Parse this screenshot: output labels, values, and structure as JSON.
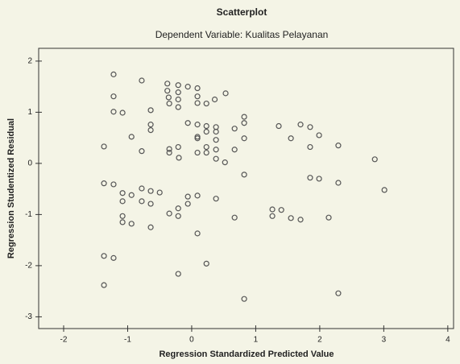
{
  "chart_data": {
    "type": "scatter",
    "title": "Scatterplot",
    "subtitle": "Dependent Variable: Kualitas Pelayanan",
    "x_label": "Regression Standardized Predicted Value",
    "y_label": "Regression Studentized Residual",
    "x": [
      -1.22,
      -1.22,
      -1.22,
      -1.08,
      -0.78,
      -0.64,
      -0.64,
      -0.64,
      -0.94,
      -0.78,
      -1.37,
      -0.38,
      -0.38,
      -0.36,
      -0.35,
      -0.21,
      -0.21,
      -0.21,
      -0.21,
      -0.06,
      0.09,
      0.09,
      0.09,
      0.23,
      0.36,
      0.53,
      -0.06,
      0.09,
      0.23,
      0.38,
      0.38,
      0.23,
      0.09,
      0.09,
      0.38,
      -0.21,
      -0.35,
      -0.35,
      -0.2,
      0.09,
      0.23,
      0.23,
      0.38,
      0.38,
      0.52,
      0.67,
      0.67,
      0.82,
      0.82,
      0.82,
      0.82,
      1.36,
      1.55,
      1.7,
      1.85,
      1.99,
      1.85,
      2.29,
      2.86,
      1.85,
      1.99,
      2.29,
      3.01,
      -1.37,
      -1.22,
      -1.08,
      -0.94,
      -1.08,
      -0.78,
      -0.64,
      -0.5,
      -0.78,
      -0.64,
      -1.08,
      -1.08,
      -0.94,
      -0.64,
      -0.35,
      -0.21,
      -0.21,
      -0.06,
      -0.06,
      0.09,
      0.38,
      0.09,
      0.23,
      -0.21,
      0.67,
      1.26,
      1.26,
      1.4,
      1.55,
      1.7,
      2.14,
      -1.37,
      -1.22,
      -1.37,
      0.82,
      2.29
    ],
    "values": [
      1.74,
      1.31,
      1.01,
      0.99,
      1.62,
      1.04,
      0.76,
      0.65,
      0.52,
      0.24,
      0.33,
      1.56,
      1.42,
      1.29,
      1.17,
      1.53,
      1.39,
      1.25,
      1.1,
      1.5,
      1.47,
      1.31,
      1.18,
      1.17,
      1.25,
      1.37,
      0.79,
      0.76,
      0.73,
      0.71,
      0.62,
      0.62,
      0.52,
      0.49,
      0.46,
      0.32,
      0.28,
      0.21,
      0.11,
      0.21,
      0.32,
      0.21,
      0.27,
      0.09,
      0.02,
      0.27,
      0.68,
      0.91,
      0.79,
      0.49,
      -0.22,
      0.73,
      0.49,
      0.76,
      0.71,
      0.55,
      0.32,
      0.35,
      0.08,
      -0.28,
      -0.3,
      -0.38,
      -0.52,
      -0.39,
      -0.41,
      -0.58,
      -0.62,
      -0.74,
      -0.49,
      -0.54,
      -0.57,
      -0.74,
      -0.79,
      -1.03,
      -1.15,
      -1.18,
      -1.25,
      -0.98,
      -1.03,
      -0.88,
      -0.79,
      -0.65,
      -0.63,
      -0.69,
      -1.37,
      -1.96,
      -2.16,
      -1.06,
      -0.9,
      -1.03,
      -0.91,
      -1.07,
      -1.1,
      -1.06,
      -1.81,
      -1.85,
      -2.38,
      -2.65,
      -2.54
    ],
    "color": "#555555",
    "xlim": [
      -2.39,
      4.09
    ],
    "ylim": [
      -3.23,
      2.25
    ],
    "xticks": [
      -2,
      -1,
      0,
      1,
      2,
      3,
      4
    ],
    "yticks": [
      -3,
      -2,
      -1,
      0,
      1,
      2
    ],
    "grid": false
  }
}
